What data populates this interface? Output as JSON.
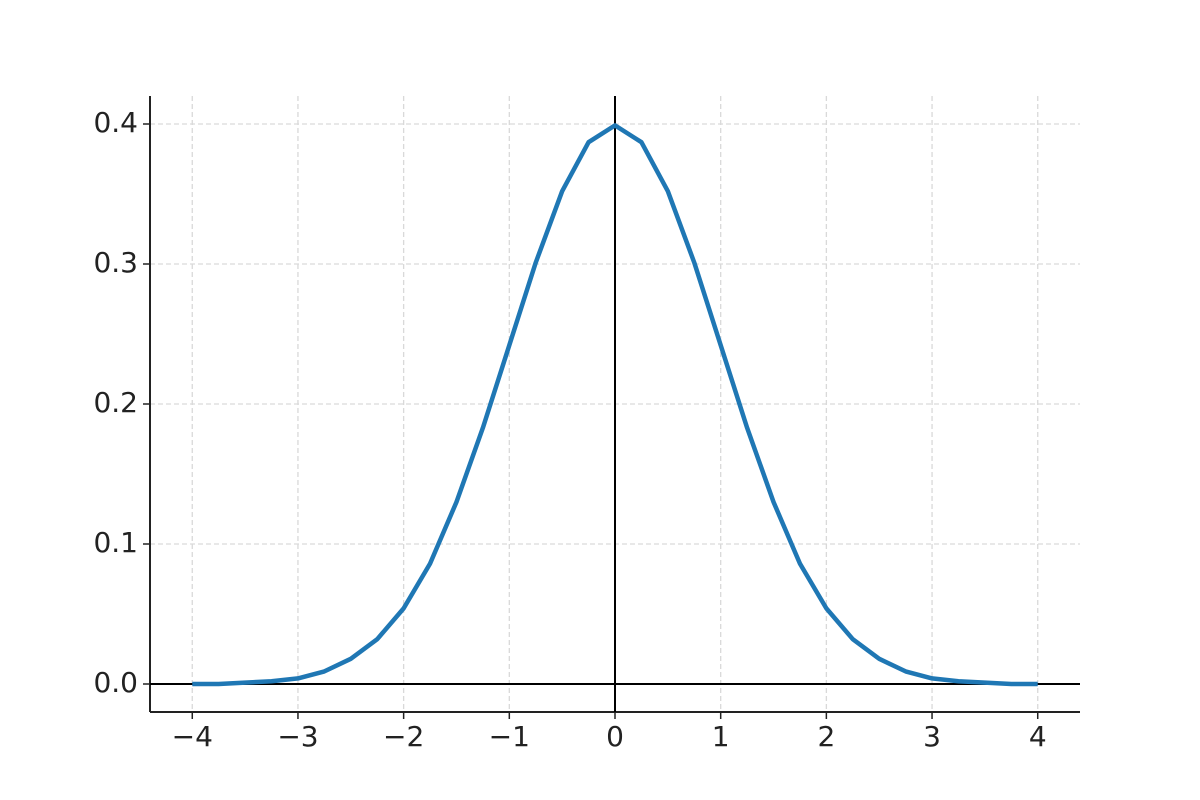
{
  "chart_data": {
    "type": "line",
    "x": [
      -4,
      -3.75,
      -3.5,
      -3.25,
      -3,
      -2.75,
      -2.5,
      -2.25,
      -2,
      -1.75,
      -1.5,
      -1.25,
      -1,
      -0.75,
      -0.5,
      -0.25,
      0,
      0.25,
      0.5,
      0.75,
      1,
      1.25,
      1.5,
      1.75,
      2,
      2.25,
      2.5,
      2.75,
      3,
      3.25,
      3.5,
      3.75,
      4
    ],
    "values": [
      0.0,
      0.0,
      0.001,
      0.002,
      0.004,
      0.009,
      0.018,
      0.032,
      0.054,
      0.086,
      0.13,
      0.183,
      0.242,
      0.301,
      0.352,
      0.387,
      0.399,
      0.387,
      0.352,
      0.301,
      0.242,
      0.183,
      0.13,
      0.086,
      0.054,
      0.032,
      0.018,
      0.009,
      0.004,
      0.002,
      0.001,
      0.0,
      0.0
    ],
    "color": "#1f77b4",
    "xlim": [
      -4.4,
      4.4
    ],
    "ylim": [
      -0.02,
      0.42
    ],
    "xticks": [
      {
        "value": -4,
        "label": "−4"
      },
      {
        "value": -3,
        "label": "−3"
      },
      {
        "value": -2,
        "label": "−2"
      },
      {
        "value": -1,
        "label": "−1"
      },
      0,
      1,
      2,
      3,
      4
    ],
    "yticks": [
      {
        "value": 0,
        "label": "0.0"
      },
      0.1,
      0.2,
      0.3,
      0.4
    ],
    "grid": true,
    "zero_lines": true
  }
}
